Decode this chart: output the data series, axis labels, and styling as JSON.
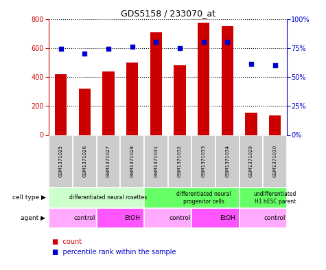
{
  "title": "GDS5158 / 233070_at",
  "samples": [
    "GSM1371025",
    "GSM1371026",
    "GSM1371027",
    "GSM1371028",
    "GSM1371031",
    "GSM1371032",
    "GSM1371033",
    "GSM1371034",
    "GSM1371029",
    "GSM1371030"
  ],
  "counts": [
    420,
    320,
    440,
    500,
    710,
    480,
    775,
    750,
    155,
    135
  ],
  "percentiles": [
    74,
    70,
    74,
    76,
    80,
    75,
    80,
    80,
    61,
    60
  ],
  "ylim_left": [
    0,
    800
  ],
  "ylim_right": [
    0,
    100
  ],
  "yticks_left": [
    0,
    200,
    400,
    600,
    800
  ],
  "yticks_right": [
    0,
    25,
    50,
    75,
    100
  ],
  "cell_type_groups": [
    {
      "label": "differentiated neural rosettes",
      "start": 0,
      "end": 4,
      "color": "#ccffcc"
    },
    {
      "label": "differentiated neural\nprogenitor cells",
      "start": 4,
      "end": 8,
      "color": "#66ff66"
    },
    {
      "label": "undifferentiated\nH1 hESC parent",
      "start": 8,
      "end": 10,
      "color": "#66ff66"
    }
  ],
  "agent_groups": [
    {
      "label": "control",
      "start": 0,
      "end": 2,
      "color": "#ffaaff"
    },
    {
      "label": "EtOH",
      "start": 2,
      "end": 4,
      "color": "#ff55ff"
    },
    {
      "label": "control",
      "start": 4,
      "end": 6,
      "color": "#ffaaff"
    },
    {
      "label": "EtOH",
      "start": 6,
      "end": 8,
      "color": "#ff55ff"
    },
    {
      "label": "control",
      "start": 8,
      "end": 10,
      "color": "#ffaaff"
    }
  ],
  "bar_color": "#cc0000",
  "dot_color": "#0000cc",
  "bar_width": 0.5,
  "left_axis_color": "#cc0000",
  "right_axis_color": "#0000cc",
  "sample_box_color": "#cccccc",
  "grid_color": "black"
}
